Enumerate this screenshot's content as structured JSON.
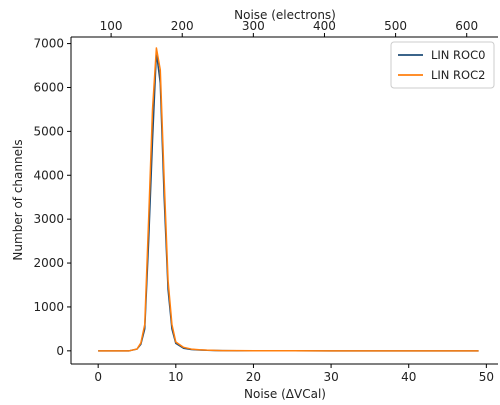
{
  "chart_data": {
    "type": "line",
    "xlabel": "Noise (ΔVCal)",
    "ylabel": "Number of channels",
    "x2label": "Noise (electrons)",
    "xlim": [
      -3.5,
      51.5
    ],
    "ylim": [
      -300,
      7150
    ],
    "x2lim": [
      43.6,
      644
    ],
    "xticks": [
      0,
      10,
      20,
      30,
      40,
      50
    ],
    "yticks": [
      0,
      1000,
      2000,
      3000,
      4000,
      5000,
      6000,
      7000
    ],
    "x2ticks": [
      100,
      200,
      300,
      400,
      500,
      600
    ],
    "legend_position": "top-right",
    "series": [
      {
        "name": "LIN ROC0",
        "color": "#1f4e79",
        "x": [
          0,
          1,
          2,
          3,
          4,
          5,
          5.5,
          6,
          6.5,
          7,
          7.5,
          8,
          8.5,
          9,
          9.5,
          10,
          11,
          12,
          13,
          14,
          15,
          16,
          18,
          20,
          25,
          30,
          35,
          40,
          45,
          49
        ],
        "y": [
          0,
          0,
          0,
          0,
          0,
          40,
          150,
          500,
          2500,
          4800,
          6800,
          6100,
          3500,
          1400,
          500,
          170,
          60,
          30,
          20,
          12,
          8,
          5,
          3,
          2,
          1,
          0,
          0,
          0,
          0,
          0
        ]
      },
      {
        "name": "LIN ROC2",
        "color": "#ff7f0e",
        "x": [
          0,
          1,
          2,
          3,
          4,
          5,
          5.5,
          6,
          6.5,
          7,
          7.5,
          8,
          8.5,
          9,
          9.5,
          10,
          11,
          12,
          13,
          14,
          15,
          16,
          18,
          20,
          25,
          30,
          35,
          40,
          45,
          49
        ],
        "y": [
          0,
          0,
          0,
          0,
          0,
          40,
          180,
          600,
          3000,
          5500,
          6900,
          6400,
          3900,
          1600,
          600,
          200,
          80,
          40,
          25,
          15,
          10,
          6,
          4,
          2,
          1,
          0,
          0,
          0,
          0,
          0
        ]
      }
    ]
  }
}
